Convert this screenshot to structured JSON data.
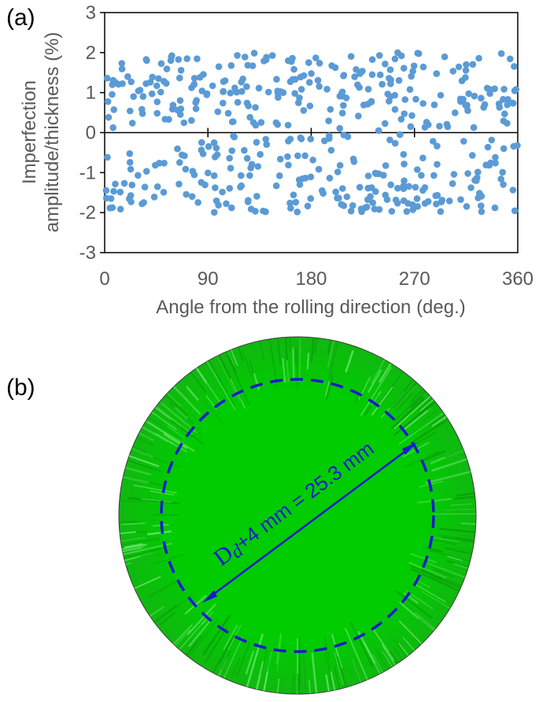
{
  "panel_a_label": "(a)",
  "panel_b_label": "(b)",
  "chart_data": {
    "type": "scatter",
    "title": "",
    "xlabel": "Angle from the rolling direction (deg.)",
    "ylabel_line1": "Imperfection",
    "ylabel_line2": "amplitude/thickness (%)",
    "xlim": [
      0,
      360
    ],
    "ylim": [
      -3,
      3
    ],
    "x_ticks": [
      "0",
      "90",
      "180",
      "270",
      "360"
    ],
    "y_ticks": [
      "3",
      "2",
      "1",
      "0",
      "-1",
      "-2",
      "-3"
    ],
    "grid": false,
    "legend": "none",
    "marker_color": "#5b9bd5",
    "n_points": 480,
    "value_note": "480 pseudo-random points, |y| between 0.05 and 2.0 %",
    "seed": 12345
  },
  "panel_b": {
    "disk_color": "#00cc00",
    "dash_circle_color": "#1a1acc",
    "dimension": {
      "d_symbol": "D",
      "d_subscript": "d",
      "rest": "+4 mm = 25.3 mm"
    }
  }
}
